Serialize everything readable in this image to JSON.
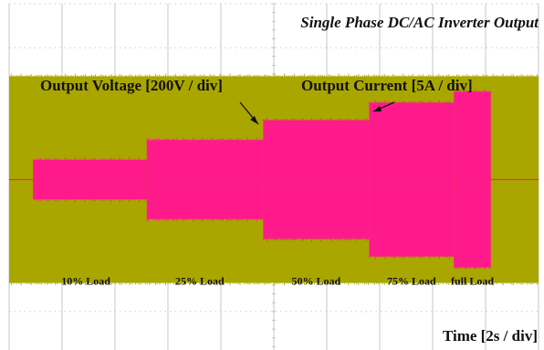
{
  "chart_data": {
    "type": "area",
    "title": "Single Phase DC/AC Inverter Output",
    "xlabel": "Time [2s / div]",
    "series": [
      {
        "name": "Output Voltage [200V / div]",
        "color": "#aaa600",
        "unit": "div",
        "segments": [
          {
            "x_start": 0.0,
            "x_end": 10.0,
            "amplitude": 2.35
          }
        ]
      },
      {
        "name": "Output Current [5A / div]",
        "color": "#ff1a8c",
        "unit": "div",
        "segments": [
          {
            "x_start": 0.45,
            "x_end": 2.6,
            "amplitude": 0.45
          },
          {
            "x_start": 2.6,
            "x_end": 4.8,
            "amplitude": 0.9
          },
          {
            "x_start": 4.8,
            "x_end": 6.8,
            "amplitude": 1.35
          },
          {
            "x_start": 6.8,
            "x_end": 8.4,
            "amplitude": 1.75
          },
          {
            "x_start": 8.4,
            "x_end": 9.1,
            "amplitude": 2.0
          }
        ]
      }
    ],
    "load_labels": [
      {
        "text": "10% Load",
        "x": 1.45
      },
      {
        "text": "25% Load",
        "x": 3.6
      },
      {
        "text": "50% Load",
        "x": 5.8
      },
      {
        "text": "75% Load",
        "x": 7.6
      },
      {
        "text": "full Load",
        "x": 8.75
      }
    ],
    "grid": {
      "x_divisions": 10,
      "y_divisions": 8
    },
    "xlim": [
      0,
      10
    ],
    "ylim": [
      -4,
      4
    ],
    "grid_color": "#b9b9b9",
    "baseline_color": "#e8305e"
  }
}
